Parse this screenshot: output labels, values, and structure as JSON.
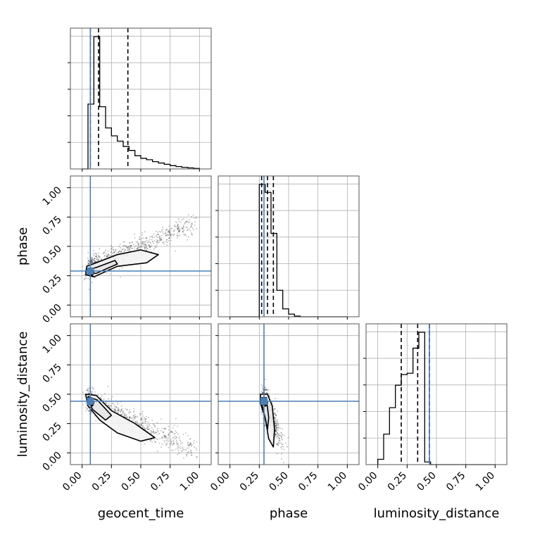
{
  "chart_data": {
    "type": "corner",
    "parameters": [
      "geocent_time",
      "phase",
      "luminosity_distance"
    ],
    "axis_range": [
      -0.1,
      1.1
    ],
    "ticks": [
      0.0,
      0.25,
      0.5,
      0.75,
      1.0
    ],
    "tick_labels": [
      "0.00",
      "0.25",
      "0.50",
      "0.75",
      "1.00"
    ],
    "grid": true,
    "truth": {
      "geocent_time": 0.07,
      "phase": 0.29,
      "luminosity_distance": 0.44
    },
    "truth_color": "#4a7fb5",
    "histograms": {
      "geocent_time": {
        "bin_edges": [
          0.0,
          0.05,
          0.1,
          0.15,
          0.2,
          0.25,
          0.3,
          0.35,
          0.4,
          0.45,
          0.5,
          0.55,
          0.6,
          0.65,
          0.7,
          0.75,
          0.8,
          0.85,
          0.9,
          0.95,
          1.0
        ],
        "counts": [
          0.0,
          0.49,
          1.0,
          0.47,
          0.31,
          0.25,
          0.21,
          0.17,
          0.14,
          0.1,
          0.08,
          0.07,
          0.055,
          0.045,
          0.035,
          0.025,
          0.018,
          0.012,
          0.008,
          0.004
        ],
        "quantiles": [
          0.07,
          0.14,
          0.39
        ]
      },
      "phase": {
        "bin_edges": [
          0.0,
          0.05,
          0.1,
          0.15,
          0.2,
          0.25,
          0.3,
          0.35,
          0.4,
          0.45,
          0.5,
          0.55,
          0.6,
          0.65,
          0.7,
          0.75,
          0.8,
          0.85,
          0.9,
          0.95,
          1.0
        ],
        "counts": [
          0,
          0,
          0,
          0,
          0,
          1.0,
          0.94,
          0.63,
          0.2,
          0.06,
          0.02,
          0.005,
          0,
          0,
          0,
          0,
          0,
          0,
          0,
          0
        ],
        "quantiles": [
          0.27,
          0.32,
          0.37
        ]
      },
      "luminosity_distance": {
        "bin_edges": [
          0.0,
          0.05,
          0.1,
          0.15,
          0.2,
          0.25,
          0.3,
          0.35,
          0.4,
          0.45,
          0.5,
          0.55,
          0.6,
          0.65,
          0.7,
          0.75,
          0.8,
          0.85,
          0.9,
          0.95,
          1.0
        ],
        "counts": [
          0.04,
          0.23,
          0.43,
          0.6,
          0.68,
          0.69,
          0.88,
          1.0,
          0.02,
          0,
          0,
          0,
          0,
          0,
          0,
          0,
          0,
          0,
          0,
          0
        ],
        "quantiles": [
          0.2,
          0.34,
          0.44
        ]
      }
    }
  }
}
